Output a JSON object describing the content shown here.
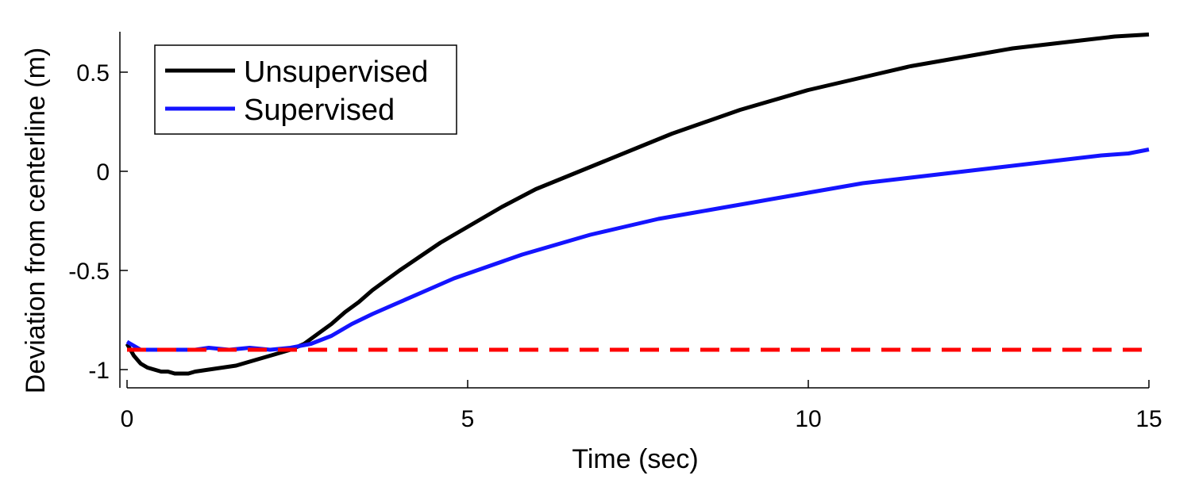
{
  "chart_data": {
    "type": "line",
    "xlabel": "Time (sec)",
    "ylabel": "Deviation from centerline (m)",
    "xlim": [
      0,
      15
    ],
    "ylim": [
      -1.05,
      0.7
    ],
    "x_ticks": [
      0,
      5,
      10,
      15
    ],
    "x_tick_labels": [
      "0",
      "5",
      "10",
      "15"
    ],
    "y_ticks": [
      -1,
      -0.5,
      0,
      0.5
    ],
    "y_tick_labels": [
      "-1",
      "-0.5",
      "0",
      "0.5"
    ],
    "grid": false,
    "legend_position": "top-left",
    "series": [
      {
        "name": "Unsupervised",
        "color": "#000000",
        "style": "solid",
        "x": [
          0,
          0.1,
          0.2,
          0.3,
          0.4,
          0.5,
          0.6,
          0.7,
          0.8,
          0.9,
          1.0,
          1.2,
          1.4,
          1.6,
          1.8,
          2.0,
          2.2,
          2.4,
          2.6,
          2.8,
          3.0,
          3.2,
          3.4,
          3.6,
          3.8,
          4.0,
          4.3,
          4.6,
          5.0,
          5.5,
          6.0,
          6.5,
          7.0,
          7.5,
          8.0,
          8.5,
          9.0,
          9.5,
          10.0,
          10.5,
          11.0,
          11.5,
          12.0,
          12.5,
          13.0,
          13.5,
          14.0,
          14.5,
          15.0
        ],
        "y": [
          -0.87,
          -0.93,
          -0.97,
          -0.99,
          -1.0,
          -1.01,
          -1.01,
          -1.02,
          -1.02,
          -1.02,
          -1.01,
          -1.0,
          -0.99,
          -0.98,
          -0.96,
          -0.94,
          -0.92,
          -0.9,
          -0.87,
          -0.82,
          -0.77,
          -0.71,
          -0.66,
          -0.6,
          -0.55,
          -0.5,
          -0.43,
          -0.36,
          -0.28,
          -0.18,
          -0.09,
          -0.02,
          0.05,
          0.12,
          0.19,
          0.25,
          0.31,
          0.36,
          0.41,
          0.45,
          0.49,
          0.53,
          0.56,
          0.59,
          0.62,
          0.64,
          0.66,
          0.68,
          0.69
        ]
      },
      {
        "name": "Supervised",
        "color": "#1414ff",
        "style": "solid",
        "x": [
          0,
          0.2,
          0.4,
          0.6,
          0.8,
          1.0,
          1.2,
          1.5,
          1.8,
          2.1,
          2.4,
          2.7,
          3.0,
          3.3,
          3.6,
          4.0,
          4.4,
          4.8,
          5.3,
          5.8,
          6.3,
          6.8,
          7.3,
          7.8,
          8.3,
          8.8,
          9.3,
          9.8,
          10.3,
          10.8,
          11.3,
          11.8,
          12.3,
          12.8,
          13.3,
          13.8,
          14.3,
          14.7,
          15.0
        ],
        "y": [
          -0.86,
          -0.9,
          -0.9,
          -0.9,
          -0.9,
          -0.9,
          -0.89,
          -0.9,
          -0.89,
          -0.9,
          -0.89,
          -0.87,
          -0.83,
          -0.77,
          -0.72,
          -0.66,
          -0.6,
          -0.54,
          -0.48,
          -0.42,
          -0.37,
          -0.32,
          -0.28,
          -0.24,
          -0.21,
          -0.18,
          -0.15,
          -0.12,
          -0.09,
          -0.06,
          -0.04,
          -0.02,
          0.0,
          0.02,
          0.04,
          0.06,
          0.08,
          0.09,
          0.11
        ]
      },
      {
        "name": "",
        "color": "#ff0000",
        "style": "dashed",
        "x": [
          0,
          15
        ],
        "y": [
          -0.9,
          -0.9
        ]
      }
    ],
    "legend": [
      {
        "label": "Unsupervised",
        "color": "#000000"
      },
      {
        "label": "Supervised",
        "color": "#1414ff"
      }
    ]
  }
}
